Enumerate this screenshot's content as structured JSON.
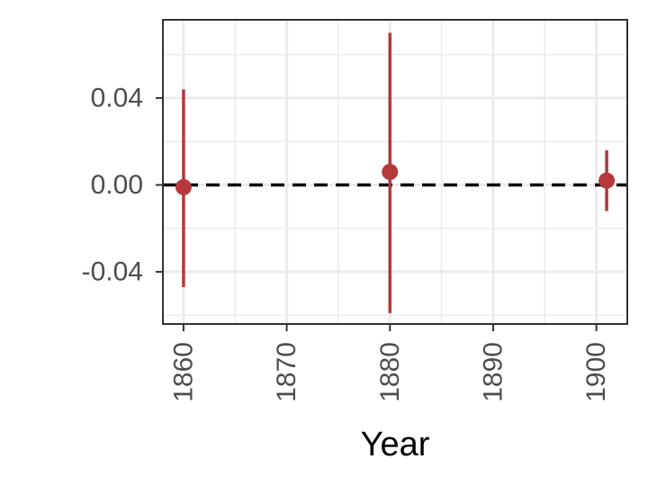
{
  "chart_data": {
    "type": "scatter",
    "title": "",
    "xlabel": "Year",
    "ylabel": "",
    "xlim": [
      1858,
      1903
    ],
    "ylim": [
      -0.064,
      0.076
    ],
    "x_ticks": [
      1860,
      1870,
      1880,
      1890,
      1900
    ],
    "x_tick_labels": [
      "1860",
      "1870",
      "1880",
      "1890",
      "1900"
    ],
    "y_ticks": [
      -0.04,
      0.0,
      0.04
    ],
    "y_tick_labels": [
      "-0.04",
      "0.00",
      "0.04"
    ],
    "grid": true,
    "reference_line": {
      "y": 0.0,
      "style": "dashed"
    },
    "points": [
      {
        "x": 1860,
        "y": -0.001,
        "lower": -0.047,
        "upper": 0.044
      },
      {
        "x": 1880,
        "y": 0.006,
        "lower": -0.059,
        "upper": 0.07
      },
      {
        "x": 1901,
        "y": 0.002,
        "lower": -0.012,
        "upper": 0.016
      }
    ],
    "colors": {
      "point": "#b5383b",
      "reference": "#000000",
      "grid": "#ebebeb",
      "panel_border": "#333333"
    }
  }
}
